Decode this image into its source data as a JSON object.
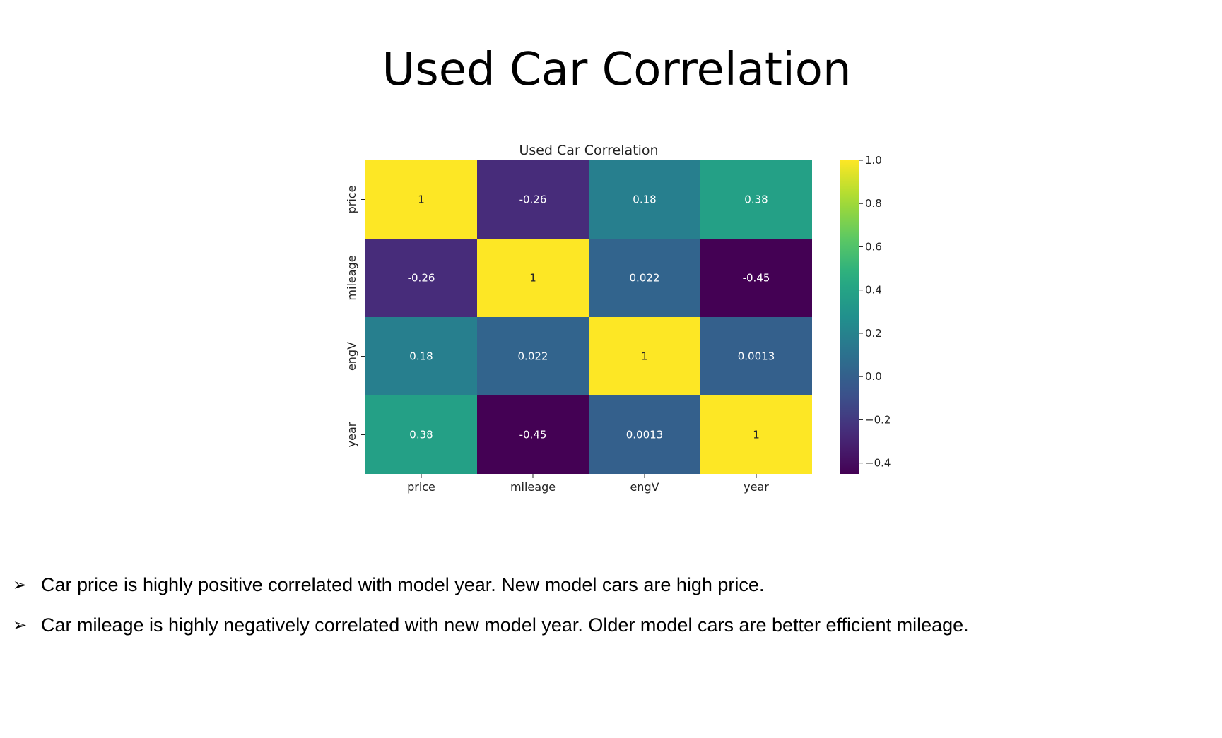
{
  "slide": {
    "title": "Used Car Correlation",
    "bullets": [
      {
        "icon": "arrowhead-bullet-icon",
        "text": "Car price is highly positive correlated with model year. New model cars are high price."
      },
      {
        "icon": "arrowhead-bullet-icon",
        "text": "Car mileage is highly negatively correlated with new model year. Older model cars are better efficient mileage."
      }
    ]
  },
  "chart_data": {
    "type": "heatmap",
    "title": "Used Car Correlation",
    "colormap": "viridis",
    "x_labels": [
      "price",
      "mileage",
      "engV",
      "year"
    ],
    "y_labels": [
      "price",
      "mileage",
      "engV",
      "year"
    ],
    "values": [
      [
        1,
        -0.26,
        0.18,
        0.38
      ],
      [
        -0.26,
        1,
        0.022,
        -0.45
      ],
      [
        0.18,
        0.022,
        1,
        0.0013
      ],
      [
        0.38,
        -0.45,
        0.0013,
        1
      ]
    ],
    "annotations": [
      [
        "1",
        "-0.26",
        "0.18",
        "0.38"
      ],
      [
        "-0.26",
        "1",
        "0.022",
        "-0.45"
      ],
      [
        "0.18",
        "0.022",
        "1",
        "0.0013"
      ],
      [
        "0.38",
        "-0.45",
        "0.0013",
        "1"
      ]
    ],
    "colorbar": {
      "range": [
        -0.45,
        1.0
      ],
      "ticks": [
        1.0,
        0.8,
        0.6,
        0.4,
        0.2,
        0.0,
        -0.2,
        -0.4
      ],
      "tick_labels": [
        "1.0",
        "0.8",
        "0.6",
        "0.4",
        "0.2",
        "0.0",
        "−0.2",
        "−0.4"
      ]
    }
  }
}
